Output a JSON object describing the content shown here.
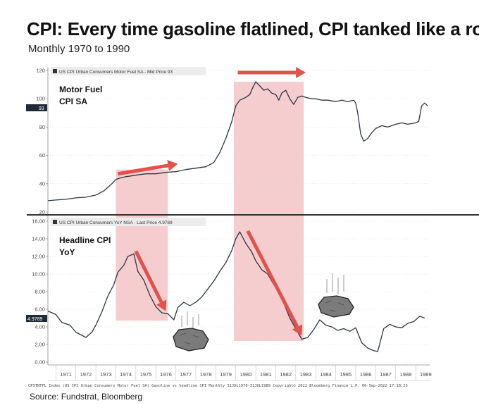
{
  "title": "CPI: Every time gasoline flatlined, CPI tanked like a rock",
  "subtitle": "Monthly 1970 to 1990",
  "source": "Source: Fundstrat, Bloomberg",
  "footer": "CPSTNTFL Index (US CPI Urban Consumers Motor Fuel SA) Gasoline vs headline CPI  Monthly 31JUL1970-31JUL1989   Copyright© 2022 Bloomberg Finance L.P.   06-Sep-2022 17:18:23",
  "colors": {
    "line": "#2a3544",
    "highlight": "#f2b8bb",
    "arrow": "#e0524a",
    "last_label_bg": "#1f2a38",
    "divider": "#333333"
  },
  "icons": [
    "falling-rock-icon",
    "falling-rock-icon"
  ],
  "chart_data": [
    {
      "type": "line",
      "panel": "top",
      "panel_label": [
        "Motor Fuel",
        "CPI SA"
      ],
      "legend": "US CPI Urban Consumers Motor Fuel SA - Mid Price 93",
      "last_value_label": "93",
      "y_ticks": [
        "120",
        "100",
        "80",
        "60",
        "40",
        "20"
      ],
      "ylim": [
        20,
        120
      ],
      "x": [
        1970.6,
        1971.0,
        1971.5,
        1972.0,
        1972.5,
        1973.0,
        1973.4,
        1973.8,
        1974.0,
        1974.2,
        1974.5,
        1975.0,
        1975.5,
        1976.0,
        1976.5,
        1977.0,
        1977.5,
        1978.0,
        1978.5,
        1978.9,
        1979.2,
        1979.5,
        1979.8,
        1980.0,
        1980.2,
        1980.5,
        1980.7,
        1980.85,
        1981.0,
        1981.2,
        1981.4,
        1981.6,
        1981.8,
        1982.0,
        1982.15,
        1982.3,
        1982.5,
        1982.7,
        1982.9,
        1983.1,
        1983.3,
        1983.5,
        1983.8,
        1984.0,
        1984.3,
        1984.6,
        1985.0,
        1985.3,
        1985.6,
        1985.9,
        1986.0,
        1986.1,
        1986.25,
        1986.4,
        1986.6,
        1986.8,
        1987.0,
        1987.3,
        1987.6,
        1988.0,
        1988.3,
        1988.6,
        1989.0,
        1989.15,
        1989.3,
        1989.45,
        1989.6
      ],
      "series": [
        {
          "values": [
            28,
            28.5,
            29,
            30,
            30.5,
            32,
            35,
            40,
            43,
            44,
            45,
            46,
            47,
            47,
            48,
            48.5,
            50,
            51,
            52,
            55,
            62,
            72,
            84,
            95,
            99,
            101,
            103,
            108,
            112,
            109,
            106,
            107,
            104,
            103,
            99,
            104,
            106,
            100,
            96,
            101,
            102,
            101,
            100,
            100,
            99,
            99,
            98,
            99,
            98,
            99,
            97,
            90,
            75,
            70,
            72,
            76,
            79,
            81,
            80,
            82,
            83,
            82,
            83,
            84,
            95,
            97,
            95
          ]
        }
      ]
    },
    {
      "type": "line",
      "panel": "bottom",
      "panel_label": [
        "Headline CPI",
        "YoY"
      ],
      "legend": "US CPI Urban Consumers YoY NSA - Last Price 4.9789",
      "last_value_label": "4.9789",
      "y_ticks": [
        "16.00",
        "14.00",
        "12.00",
        "10.00",
        "8.00",
        "6.00",
        "4.00",
        "2.00",
        "0.00"
      ],
      "ylim": [
        0,
        16
      ],
      "x": [
        1970.6,
        1971.0,
        1971.3,
        1971.7,
        1972.0,
        1972.5,
        1972.8,
        1973.0,
        1973.3,
        1973.6,
        1973.9,
        1974.1,
        1974.4,
        1974.6,
        1974.9,
        1975.1,
        1975.4,
        1975.7,
        1976.0,
        1976.3,
        1976.6,
        1976.9,
        1977.1,
        1977.4,
        1977.7,
        1978.0,
        1978.3,
        1978.6,
        1978.9,
        1979.2,
        1979.5,
        1979.8,
        1980.0,
        1980.2,
        1980.5,
        1980.8,
        1981.0,
        1981.3,
        1981.6,
        1981.9,
        1982.1,
        1982.4,
        1982.7,
        1983.0,
        1983.3,
        1983.6,
        1983.9,
        1984.2,
        1984.5,
        1984.8,
        1985.1,
        1985.4,
        1985.7,
        1986.0,
        1986.3,
        1986.6,
        1986.9,
        1987.1,
        1987.4,
        1987.7,
        1988.0,
        1988.3,
        1988.6,
        1988.9,
        1989.2,
        1989.45
      ],
      "series": [
        {
          "values": [
            5.8,
            5.4,
            4.5,
            4.2,
            3.4,
            2.8,
            3.4,
            4.2,
            5.7,
            7.5,
            8.8,
            10.2,
            11.0,
            12.0,
            12.3,
            10.3,
            9.3,
            7.6,
            6.3,
            5.6,
            5.5,
            4.8,
            6.2,
            6.8,
            6.4,
            6.8,
            7.4,
            8.3,
            9.2,
            10.3,
            11.3,
            12.7,
            14.0,
            14.8,
            13.5,
            12.5,
            11.5,
            10.5,
            10.0,
            8.8,
            8.2,
            6.7,
            5.0,
            3.8,
            2.6,
            2.8,
            3.7,
            4.8,
            4.2,
            4.0,
            3.6,
            3.8,
            3.5,
            3.9,
            2.2,
            1.6,
            1.3,
            1.2,
            3.8,
            4.3,
            4.0,
            3.9,
            4.4,
            4.6,
            5.2,
            5.0
          ]
        }
      ]
    }
  ],
  "x_ticks": [
    "1971",
    "1972",
    "1973",
    "1974",
    "1975",
    "1976",
    "1977",
    "1978",
    "1979",
    "1980",
    "1981",
    "1982",
    "1983",
    "1984",
    "1985",
    "1986",
    "1987",
    "1988",
    "1989"
  ],
  "highlights": [
    {
      "x_from": 1974.0,
      "x_to": 1976.6,
      "top_value": 50,
      "bottom_value": 4.7
    },
    {
      "x_from": 1979.9,
      "x_to": 1983.4,
      "top_value": 112,
      "bottom_value": 2.4
    }
  ],
  "arrows": [
    {
      "panel": "top",
      "from": [
        1974.1,
        47
      ],
      "to": [
        1977.1,
        54
      ]
    },
    {
      "panel": "top",
      "from": [
        1980.1,
        118.5
      ],
      "to": [
        1983.5,
        118.5
      ]
    },
    {
      "panel": "bottom",
      "from": [
        1975.0,
        12.6
      ],
      "to": [
        1976.5,
        5.8
      ]
    },
    {
      "panel": "bottom",
      "from": [
        1980.6,
        14.9
      ],
      "to": [
        1983.3,
        3.0
      ]
    }
  ]
}
